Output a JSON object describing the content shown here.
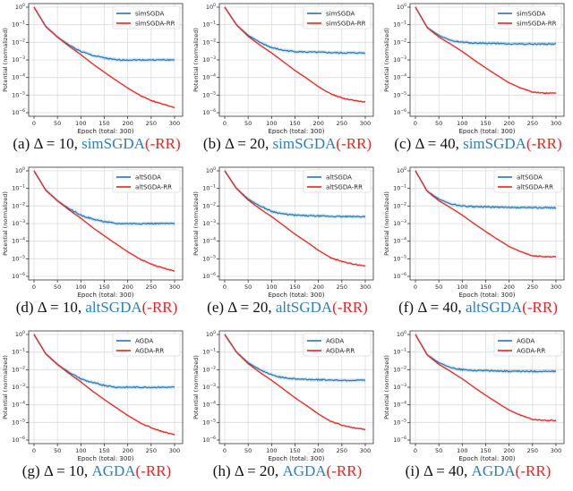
{
  "chart_data": [
    {
      "id": "a",
      "type": "line",
      "label": "(a)",
      "delta": "Δ = 10,",
      "method": "simSGDA",
      "rr": "(-RR)",
      "xlabel": "Epoch (total: 300)",
      "ylabel": "Potential (normalized)",
      "yscale": "log",
      "ylim": [
        1e-06,
        1
      ],
      "xlim": [
        0,
        300
      ],
      "xticks": [
        0,
        50,
        100,
        150,
        200,
        250,
        300
      ],
      "yticks": [
        0,
        -1,
        -2,
        -3,
        -4,
        -5,
        -6
      ],
      "grid": true,
      "legend": "top-right",
      "series": [
        {
          "name": "simSGDA",
          "color": "#1f77b4",
          "x": [
            0,
            25,
            50,
            75,
            100,
            125,
            150,
            175,
            200,
            225,
            250,
            275,
            300
          ],
          "y": [
            1,
            0.08,
            0.02,
            0.007,
            0.003,
            0.0018,
            0.0013,
            0.001,
            0.001,
            0.001,
            0.001,
            0.001,
            0.001
          ]
        },
        {
          "name": "simSGDA-RR",
          "color": "#e8231d",
          "x": [
            0,
            25,
            50,
            75,
            100,
            125,
            150,
            175,
            200,
            225,
            250,
            275,
            300
          ],
          "y": [
            1,
            0.08,
            0.02,
            0.006,
            0.002,
            0.0006,
            0.0002,
            7e-05,
            2.5e-05,
            1e-05,
            5e-06,
            3e-06,
            2e-06
          ]
        }
      ]
    },
    {
      "id": "b",
      "type": "line",
      "label": "(b)",
      "delta": "Δ = 20,",
      "method": "simSGDA",
      "rr": "(-RR)",
      "xlabel": "Epoch (total: 300)",
      "ylabel": "Potential (normalized)",
      "yscale": "log",
      "ylim": [
        1e-06,
        1
      ],
      "xlim": [
        0,
        300
      ],
      "xticks": [
        0,
        50,
        100,
        150,
        200,
        250,
        300
      ],
      "yticks": [
        0,
        -1,
        -2,
        -3,
        -4,
        -5,
        -6
      ],
      "grid": true,
      "legend": "top-right",
      "series": [
        {
          "name": "simSGDA",
          "color": "#1f77b4",
          "x": [
            0,
            25,
            50,
            75,
            100,
            125,
            150,
            175,
            200,
            225,
            250,
            275,
            300
          ],
          "y": [
            1,
            0.1,
            0.025,
            0.01,
            0.005,
            0.0035,
            0.003,
            0.0028,
            0.0027,
            0.0026,
            0.0025,
            0.0025,
            0.0025
          ]
        },
        {
          "name": "simSGDA-RR",
          "color": "#e8231d",
          "x": [
            0,
            25,
            50,
            75,
            100,
            125,
            150,
            175,
            200,
            225,
            250,
            275,
            300
          ],
          "y": [
            1,
            0.1,
            0.022,
            0.007,
            0.0025,
            0.0008,
            0.00025,
            9e-05,
            3e-05,
            1.2e-05,
            7e-06,
            5e-06,
            4e-06
          ]
        }
      ]
    },
    {
      "id": "c",
      "type": "line",
      "label": "(c)",
      "delta": "Δ = 40,",
      "method": "simSGDA",
      "rr": "(-RR)",
      "xlabel": "Epoch (total: 300)",
      "ylabel": "Potential (normalized)",
      "yscale": "log",
      "ylim": [
        1e-06,
        1
      ],
      "xlim": [
        0,
        300
      ],
      "xticks": [
        0,
        50,
        100,
        150,
        200,
        250,
        300
      ],
      "yticks": [
        0,
        -1,
        -2,
        -3,
        -4,
        -5,
        -6
      ],
      "grid": true,
      "legend": "top-right",
      "series": [
        {
          "name": "simSGDA",
          "color": "#1f77b4",
          "x": [
            0,
            25,
            50,
            75,
            100,
            125,
            150,
            175,
            200,
            225,
            250,
            275,
            300
          ],
          "y": [
            1,
            0.07,
            0.025,
            0.013,
            0.01,
            0.009,
            0.009,
            0.0085,
            0.008,
            0.008,
            0.008,
            0.008,
            0.008
          ]
        },
        {
          "name": "simSGDA-RR",
          "color": "#e8231d",
          "x": [
            0,
            25,
            50,
            75,
            100,
            125,
            150,
            175,
            200,
            225,
            250,
            275,
            300
          ],
          "y": [
            1,
            0.07,
            0.02,
            0.008,
            0.003,
            0.001,
            0.00035,
            0.00013,
            5e-05,
            2.5e-05,
            1.5e-05,
            1.3e-05,
            1.3e-05
          ]
        }
      ]
    },
    {
      "id": "d",
      "type": "line",
      "label": "(d)",
      "delta": "Δ = 10,",
      "method": "altSGDA",
      "rr": "(-RR)",
      "xlabel": "Epoch (total: 300)",
      "ylabel": "Potential (normalized)",
      "yscale": "log",
      "ylim": [
        1e-06,
        1
      ],
      "xlim": [
        0,
        300
      ],
      "xticks": [
        0,
        50,
        100,
        150,
        200,
        250,
        300
      ],
      "yticks": [
        0,
        -1,
        -2,
        -3,
        -4,
        -5,
        -6
      ],
      "grid": true,
      "legend": "top-right",
      "series": [
        {
          "name": "altSGDA",
          "color": "#1f77b4",
          "x": [
            0,
            25,
            50,
            75,
            100,
            125,
            150,
            175,
            200,
            225,
            250,
            275,
            300
          ],
          "y": [
            1,
            0.08,
            0.02,
            0.007,
            0.003,
            0.0018,
            0.0013,
            0.001,
            0.001,
            0.001,
            0.001,
            0.001,
            0.001
          ]
        },
        {
          "name": "altSGDA-RR",
          "color": "#e8231d",
          "x": [
            0,
            25,
            50,
            75,
            100,
            125,
            150,
            175,
            200,
            225,
            250,
            275,
            300
          ],
          "y": [
            1,
            0.08,
            0.02,
            0.006,
            0.002,
            0.0006,
            0.0002,
            7e-05,
            2.5e-05,
            1e-05,
            5e-06,
            3e-06,
            2e-06
          ]
        }
      ]
    },
    {
      "id": "e",
      "type": "line",
      "label": "(e)",
      "delta": "Δ = 20,",
      "method": "altSGDA",
      "rr": "(-RR)",
      "xlabel": "Epoch (total: 300)",
      "ylabel": "Potential (normalized)",
      "yscale": "log",
      "ylim": [
        1e-06,
        1
      ],
      "xlim": [
        0,
        300
      ],
      "xticks": [
        0,
        50,
        100,
        150,
        200,
        250,
        300
      ],
      "yticks": [
        0,
        -1,
        -2,
        -3,
        -4,
        -5,
        -6
      ],
      "grid": true,
      "legend": "top-right",
      "series": [
        {
          "name": "altSGDA",
          "color": "#1f77b4",
          "x": [
            0,
            25,
            50,
            75,
            100,
            125,
            150,
            175,
            200,
            225,
            250,
            275,
            300
          ],
          "y": [
            1,
            0.1,
            0.025,
            0.01,
            0.005,
            0.0035,
            0.003,
            0.0028,
            0.0027,
            0.0026,
            0.0025,
            0.0025,
            0.0025
          ]
        },
        {
          "name": "altSGDA-RR",
          "color": "#e8231d",
          "x": [
            0,
            25,
            50,
            75,
            100,
            125,
            150,
            175,
            200,
            225,
            250,
            275,
            300
          ],
          "y": [
            1,
            0.1,
            0.022,
            0.007,
            0.0025,
            0.0008,
            0.00025,
            9e-05,
            3e-05,
            1.2e-05,
            7e-06,
            5e-06,
            4e-06
          ]
        }
      ]
    },
    {
      "id": "f",
      "type": "line",
      "label": "(f)",
      "delta": "Δ = 40,",
      "method": "altSGDA",
      "rr": "(-RR)",
      "xlabel": "Epoch (total: 300)",
      "ylabel": "Potential (normalized)",
      "yscale": "log",
      "ylim": [
        1e-06,
        1
      ],
      "xlim": [
        0,
        300
      ],
      "xticks": [
        0,
        50,
        100,
        150,
        200,
        250,
        300
      ],
      "yticks": [
        0,
        -1,
        -2,
        -3,
        -4,
        -5,
        -6
      ],
      "grid": true,
      "legend": "top-right",
      "series": [
        {
          "name": "altSGDA",
          "color": "#1f77b4",
          "x": [
            0,
            25,
            50,
            75,
            100,
            125,
            150,
            175,
            200,
            225,
            250,
            275,
            300
          ],
          "y": [
            1,
            0.07,
            0.025,
            0.013,
            0.01,
            0.009,
            0.009,
            0.0085,
            0.008,
            0.008,
            0.008,
            0.008,
            0.008
          ]
        },
        {
          "name": "altSGDA-RR",
          "color": "#e8231d",
          "x": [
            0,
            25,
            50,
            75,
            100,
            125,
            150,
            175,
            200,
            225,
            250,
            275,
            300
          ],
          "y": [
            1,
            0.07,
            0.02,
            0.008,
            0.003,
            0.001,
            0.00035,
            0.00013,
            5e-05,
            2.5e-05,
            1.5e-05,
            1.3e-05,
            1.3e-05
          ]
        }
      ]
    },
    {
      "id": "g",
      "type": "line",
      "label": "(g)",
      "delta": "Δ = 10,",
      "method": "AGDA",
      "rr": "(-RR)",
      "xlabel": "Epoch (total: 300)",
      "ylabel": "Potential (normalized)",
      "yscale": "log",
      "ylim": [
        1e-06,
        1
      ],
      "xlim": [
        0,
        300
      ],
      "xticks": [
        0,
        50,
        100,
        150,
        200,
        250,
        300
      ],
      "yticks": [
        0,
        -1,
        -2,
        -3,
        -4,
        -5,
        -6
      ],
      "grid": true,
      "legend": "top-right",
      "series": [
        {
          "name": "AGDA",
          "color": "#1f77b4",
          "x": [
            0,
            25,
            50,
            75,
            100,
            125,
            150,
            175,
            200,
            225,
            250,
            275,
            300
          ],
          "y": [
            1,
            0.08,
            0.02,
            0.007,
            0.003,
            0.0018,
            0.0013,
            0.001,
            0.001,
            0.001,
            0.001,
            0.001,
            0.001
          ]
        },
        {
          "name": "AGDA-RR",
          "color": "#e8231d",
          "x": [
            0,
            25,
            50,
            75,
            100,
            125,
            150,
            175,
            200,
            225,
            250,
            275,
            300
          ],
          "y": [
            1,
            0.08,
            0.02,
            0.006,
            0.002,
            0.0006,
            0.0002,
            7e-05,
            2.5e-05,
            1e-05,
            5e-06,
            3e-06,
            2e-06
          ]
        }
      ]
    },
    {
      "id": "h",
      "type": "line",
      "label": "(h)",
      "delta": "Δ = 20,",
      "method": "AGDA",
      "rr": "(-RR)",
      "xlabel": "Epoch (total: 300)",
      "ylabel": "Potential (normalized)",
      "yscale": "log",
      "ylim": [
        1e-06,
        1
      ],
      "xlim": [
        0,
        300
      ],
      "xticks": [
        0,
        50,
        100,
        150,
        200,
        250,
        300
      ],
      "yticks": [
        0,
        -1,
        -2,
        -3,
        -4,
        -5,
        -6
      ],
      "grid": true,
      "legend": "top-right",
      "series": [
        {
          "name": "AGDA",
          "color": "#1f77b4",
          "x": [
            0,
            25,
            50,
            75,
            100,
            125,
            150,
            175,
            200,
            225,
            250,
            275,
            300
          ],
          "y": [
            1,
            0.1,
            0.025,
            0.01,
            0.005,
            0.0035,
            0.003,
            0.0028,
            0.0027,
            0.0026,
            0.0025,
            0.0025,
            0.0025
          ]
        },
        {
          "name": "AGDA-RR",
          "color": "#e8231d",
          "x": [
            0,
            25,
            50,
            75,
            100,
            125,
            150,
            175,
            200,
            225,
            250,
            275,
            300
          ],
          "y": [
            1,
            0.1,
            0.022,
            0.007,
            0.0025,
            0.0008,
            0.00025,
            9e-05,
            3e-05,
            1.2e-05,
            7e-06,
            5e-06,
            4e-06
          ]
        }
      ]
    },
    {
      "id": "i",
      "type": "line",
      "label": "(i)",
      "delta": "Δ = 40,",
      "method": "AGDA",
      "rr": "(-RR)",
      "xlabel": "Epoch (total: 300)",
      "ylabel": "Potential (normalized)",
      "yscale": "log",
      "ylim": [
        1e-06,
        1
      ],
      "xlim": [
        0,
        300
      ],
      "xticks": [
        0,
        50,
        100,
        150,
        200,
        250,
        300
      ],
      "yticks": [
        0,
        -1,
        -2,
        -3,
        -4,
        -5,
        -6
      ],
      "grid": true,
      "legend": "top-right",
      "series": [
        {
          "name": "AGDA",
          "color": "#1f77b4",
          "x": [
            0,
            25,
            50,
            75,
            100,
            125,
            150,
            175,
            200,
            225,
            250,
            275,
            300
          ],
          "y": [
            1,
            0.07,
            0.025,
            0.013,
            0.01,
            0.009,
            0.009,
            0.0085,
            0.008,
            0.008,
            0.008,
            0.008,
            0.008
          ]
        },
        {
          "name": "AGDA-RR",
          "color": "#e8231d",
          "x": [
            0,
            25,
            50,
            75,
            100,
            125,
            150,
            175,
            200,
            225,
            250,
            275,
            300
          ],
          "y": [
            1,
            0.07,
            0.02,
            0.008,
            0.003,
            0.001,
            0.00035,
            0.00013,
            5e-05,
            2.5e-05,
            1.5e-05,
            1.3e-05,
            1.3e-05
          ]
        }
      ]
    }
  ]
}
